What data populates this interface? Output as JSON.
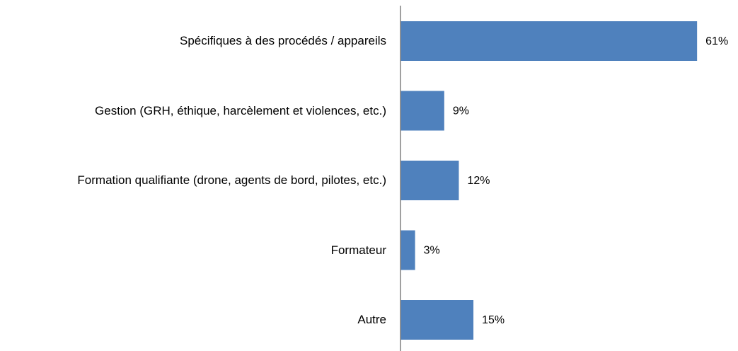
{
  "chart_data": {
    "type": "bar",
    "orientation": "horizontal",
    "categories": [
      "Spécifiques à des procédés / appareils",
      "Gestion (GRH, éthique, harcèlement et violences, etc.)",
      "Formation qualifiante (drone, agents de bord, pilotes, etc.)",
      "Formateur",
      "Autre"
    ],
    "values": [
      61,
      9,
      12,
      3,
      15
    ],
    "value_labels": [
      "61%",
      "9%",
      "12%",
      "3%",
      "15%"
    ],
    "color": "#4f81bd",
    "xlim": [
      0,
      70
    ]
  }
}
